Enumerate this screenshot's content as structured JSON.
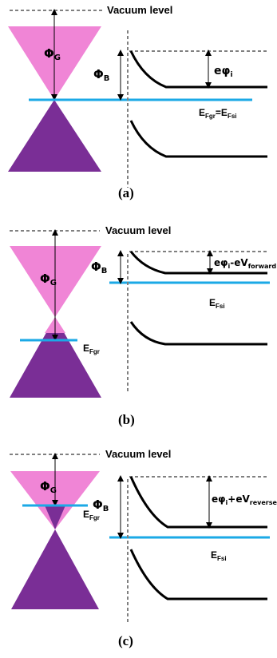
{
  "colors": {
    "pink": "#F085D6",
    "purple": "#7A2E96",
    "fermi_line": "#1BA9E6",
    "band": "#000000",
    "dashed": "#808080"
  },
  "panels": [
    {
      "caption": "(a)",
      "vacuum_label": "Vacuum level",
      "phi_g": "Φ",
      "phi_g_sub": "G",
      "phi_b": "Φ",
      "phi_b_sub": "B",
      "barrier_main": "eφ",
      "barrier_sub": "i",
      "barrier_tail": "",
      "barrier_tail_sub": "",
      "fermi_gr_main": "E",
      "fermi_gr_sub": "Fgr",
      "fermi_eq": "=",
      "fermi_si_main": "E",
      "fermi_si_sub": "Fsi"
    },
    {
      "caption": "(b)",
      "vacuum_label": "Vacuum level",
      "phi_g": "Φ",
      "phi_g_sub": "G",
      "phi_b": "Φ",
      "phi_b_sub": "B",
      "barrier_main": "eφ",
      "barrier_sub": "i",
      "barrier_tail": "-eV",
      "barrier_tail_sub": "forward",
      "fermi_gr_main": "E",
      "fermi_gr_sub": "Fgr",
      "fermi_si_main": "E",
      "fermi_si_sub": "Fsi"
    },
    {
      "caption": "(c)",
      "vacuum_label": "Vacuum level",
      "phi_g": "Φ",
      "phi_g_sub": "G",
      "phi_b": "Φ",
      "phi_b_sub": "B",
      "barrier_main": "eφ",
      "barrier_sub": "i",
      "barrier_tail": "+eV",
      "barrier_tail_sub": "reverse",
      "fermi_gr_main": "E",
      "fermi_gr_sub": "Fgr",
      "fermi_si_main": "E",
      "fermi_si_sub": "Fsi"
    }
  ]
}
